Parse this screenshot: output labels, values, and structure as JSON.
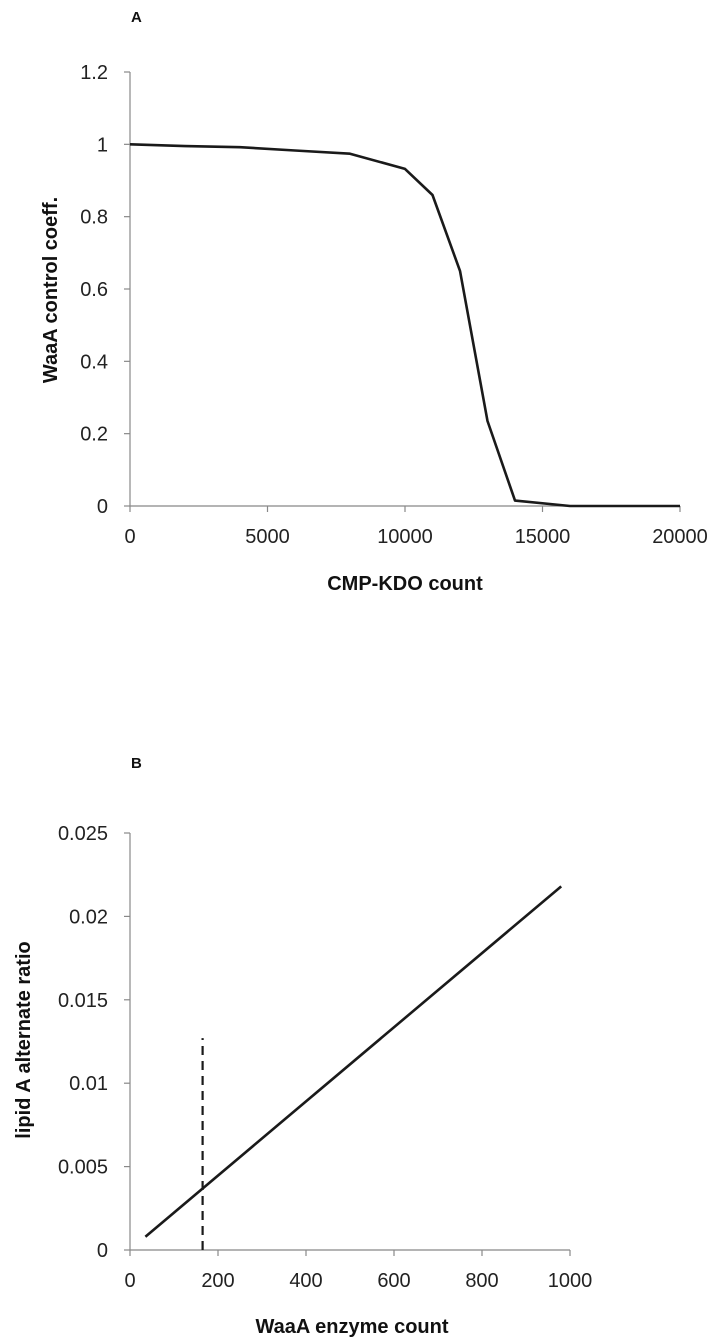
{
  "chart_data": [
    {
      "panel_label": "A",
      "type": "line",
      "xlabel": "CMP-KDO count",
      "ylabel": "WaaA control coeff.",
      "xlim": [
        0,
        20000
      ],
      "ylim": [
        0,
        1.2
      ],
      "x_ticks": [
        "0",
        "5000",
        "10000",
        "15000",
        "20000"
      ],
      "y_ticks": [
        "0",
        "0.2",
        "0.4",
        "0.6",
        "0.8",
        "1",
        "1.2"
      ],
      "grid": false,
      "series": [
        {
          "x": [
            0,
            2000,
            4000,
            6000,
            8000,
            10000,
            11000,
            12000,
            13000,
            14000,
            16000,
            18000,
            20000
          ],
          "y": [
            1.0,
            0.995,
            0.992,
            0.983,
            0.974,
            0.932,
            0.86,
            0.65,
            0.235,
            0.015,
            0.0,
            0.0,
            0.0
          ],
          "color": "#1a1a1a"
        }
      ]
    },
    {
      "panel_label": "B",
      "type": "line",
      "xlabel": "WaaA enzyme count",
      "ylabel": "lipid A alternate ratio",
      "xlim": [
        0,
        1000
      ],
      "ylim": [
        0,
        0.025
      ],
      "x_ticks": [
        "0",
        "200",
        "400",
        "600",
        "800",
        "1000"
      ],
      "y_ticks": [
        "0",
        "0.005",
        "0.01",
        "0.015",
        "0.02",
        "0.025"
      ],
      "grid": false,
      "series": [
        {
          "x": [
            35,
            980
          ],
          "y": [
            0.0008,
            0.0218
          ],
          "color": "#1a1a1a"
        }
      ],
      "reference_lines": [
        {
          "orientation": "vertical",
          "x": 165,
          "y_range": [
            0,
            0.0127
          ],
          "style": "dashed",
          "color": "#1a1a1a"
        }
      ]
    }
  ]
}
